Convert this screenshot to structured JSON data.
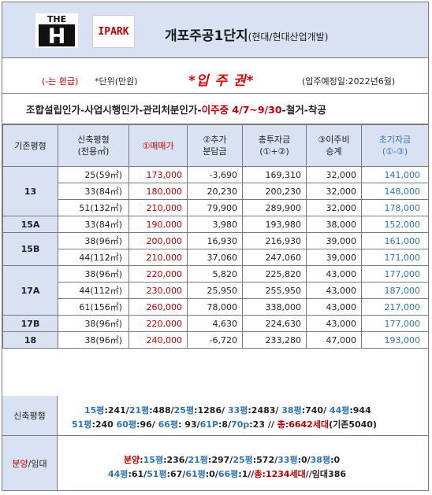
{
  "header": {
    "logo_the_text": "THE",
    "logo_h_text": "H",
    "logo_ipark_text": "IPARK",
    "title_main": "개포주공1단지",
    "title_sub": "(현대/현대산업개발)"
  },
  "info": {
    "negative_note": "(-는 환급)",
    "unit_note": "*단위(만원)",
    "ticket_label": "*입 주 권*",
    "move_in_note": "(입주예정일:2022년6월)"
  },
  "steps": {
    "part1": "조합설립인가-사업시행인가-관리처분인가-",
    "part2": "이주중 4/7~9/30",
    "part3": "-철거-착공"
  },
  "table": {
    "headers": {
      "existing": "기존평형",
      "new_line1": "신축평형",
      "new_line2": "(전용㎡)",
      "price": "①매매가",
      "extra_line1": "②추가",
      "extra_line2": "분담금",
      "total_line1": "총투자금",
      "total_line2": "(①+②)",
      "relocation_line1": "③이주비",
      "relocation_line2": "승계",
      "initial_line1": "초기자금",
      "initial_line2": "(①-③)"
    },
    "groups": [
      {
        "type": "13",
        "rows": [
          {
            "size": "25(59㎡)",
            "price": "173,000",
            "extra": "-3,690",
            "total": "169,310",
            "reloc": "32,000",
            "initial": "141,000"
          },
          {
            "size": "33(84㎡)",
            "price": "180,000",
            "extra": "20,230",
            "total": "200,230",
            "reloc": "32,000",
            "initial": "148,000"
          },
          {
            "size": "51(132㎡)",
            "price": "210,000",
            "extra": "79,900",
            "total": "289,900",
            "reloc": "32,000",
            "initial": "178,000"
          }
        ]
      },
      {
        "type": "15A",
        "rows": [
          {
            "size": "33(84㎡)",
            "price": "190,000",
            "extra": "3,980",
            "total": "193,980",
            "reloc": "38,000",
            "initial": "152,000"
          }
        ]
      },
      {
        "type": "15B",
        "rows": [
          {
            "size": "38(96㎡)",
            "price": "200,000",
            "extra": "16,930",
            "total": "216,930",
            "reloc": "39,000",
            "initial": "161,000"
          },
          {
            "size": "44(112㎡)",
            "price": "210,000",
            "extra": "37,060",
            "total": "247,060",
            "reloc": "39,000",
            "initial": "171,000"
          }
        ]
      },
      {
        "type": "17A",
        "rows": [
          {
            "size": "38(96㎡)",
            "price": "220,000",
            "extra": "5,820",
            "total": "225,820",
            "reloc": "43,000",
            "initial": "177,000"
          },
          {
            "size": "44(112㎡)",
            "price": "230,000",
            "extra": "25,950",
            "total": "255,950",
            "reloc": "43,000",
            "initial": "187,000"
          },
          {
            "size": "61(156㎡)",
            "price": "260,000",
            "extra": "78,000",
            "total": "338,000",
            "reloc": "43,000",
            "initial": "217,000"
          }
        ]
      },
      {
        "type": "17B",
        "rows": [
          {
            "size": "38(96㎡)",
            "price": "220,000",
            "extra": "4,630",
            "total": "224,630",
            "reloc": "43,000",
            "initial": "177,000"
          }
        ]
      },
      {
        "type": "18",
        "rows": [
          {
            "size": "38(96㎡)",
            "price": "240,000",
            "extra": "-6,720",
            "total": "233,280",
            "reloc": "47,000",
            "initial": "193,000"
          }
        ]
      }
    ]
  },
  "new_sizes": {
    "label": "신축평형",
    "line1": [
      {
        "t": "15평",
        "c": "blue"
      },
      {
        "t": ":241/",
        "c": "dark"
      },
      {
        "t": "21평",
        "c": "blue"
      },
      {
        "t": ":488/",
        "c": "dark"
      },
      {
        "t": "25평",
        "c": "blue"
      },
      {
        "t": ":1286/ ",
        "c": "dark"
      },
      {
        "t": "33평",
        "c": "blue"
      },
      {
        "t": ":2483/ ",
        "c": "dark"
      },
      {
        "t": "38평",
        "c": "blue"
      },
      {
        "t": ":740/ ",
        "c": "dark"
      },
      {
        "t": "44평",
        "c": "blue"
      },
      {
        "t": ":944",
        "c": "dark"
      }
    ],
    "line2": [
      {
        "t": "51평",
        "c": "blue"
      },
      {
        "t": ":240 ",
        "c": "dark"
      },
      {
        "t": "60평",
        "c": "blue"
      },
      {
        "t": ":96/ ",
        "c": "dark"
      },
      {
        "t": "66평",
        "c": "blue"
      },
      {
        "t": ": 93/",
        "c": "dark"
      },
      {
        "t": "61P",
        "c": "blue"
      },
      {
        "t": ":8/",
        "c": "dark"
      },
      {
        "t": "70p",
        "c": "blue"
      },
      {
        "t": ":23 // ",
        "c": "dark"
      },
      {
        "t": "총:6642세대",
        "c": "red"
      },
      {
        "t": "(기존5040)",
        "c": "dark"
      }
    ]
  },
  "sale_rent": {
    "label_sale": "분양",
    "label_rest": "/임대",
    "line1": [
      {
        "t": "분양",
        "c": "red"
      },
      {
        "t": ":",
        "c": "dark"
      },
      {
        "t": "15평",
        "c": "blue"
      },
      {
        "t": ":236/",
        "c": "dark"
      },
      {
        "t": "21평",
        "c": "blue"
      },
      {
        "t": ":297/",
        "c": "dark"
      },
      {
        "t": "25평",
        "c": "blue"
      },
      {
        "t": ":572/",
        "c": "dark"
      },
      {
        "t": "33평",
        "c": "blue"
      },
      {
        "t": ":0/",
        "c": "dark"
      },
      {
        "t": "38평",
        "c": "blue"
      },
      {
        "t": ":0",
        "c": "dark"
      }
    ],
    "line2": [
      {
        "t": "44평",
        "c": "blue"
      },
      {
        "t": ":61/",
        "c": "dark"
      },
      {
        "t": "51평",
        "c": "blue"
      },
      {
        "t": ":67/",
        "c": "dark"
      },
      {
        "t": "61평",
        "c": "blue"
      },
      {
        "t": ":0/",
        "c": "dark"
      },
      {
        "t": "66평",
        "c": "blue"
      },
      {
        "t": ":1//",
        "c": "dark"
      },
      {
        "t": "총:1234세대",
        "c": "red"
      },
      {
        "t": "//임대386",
        "c": "dark"
      }
    ]
  }
}
